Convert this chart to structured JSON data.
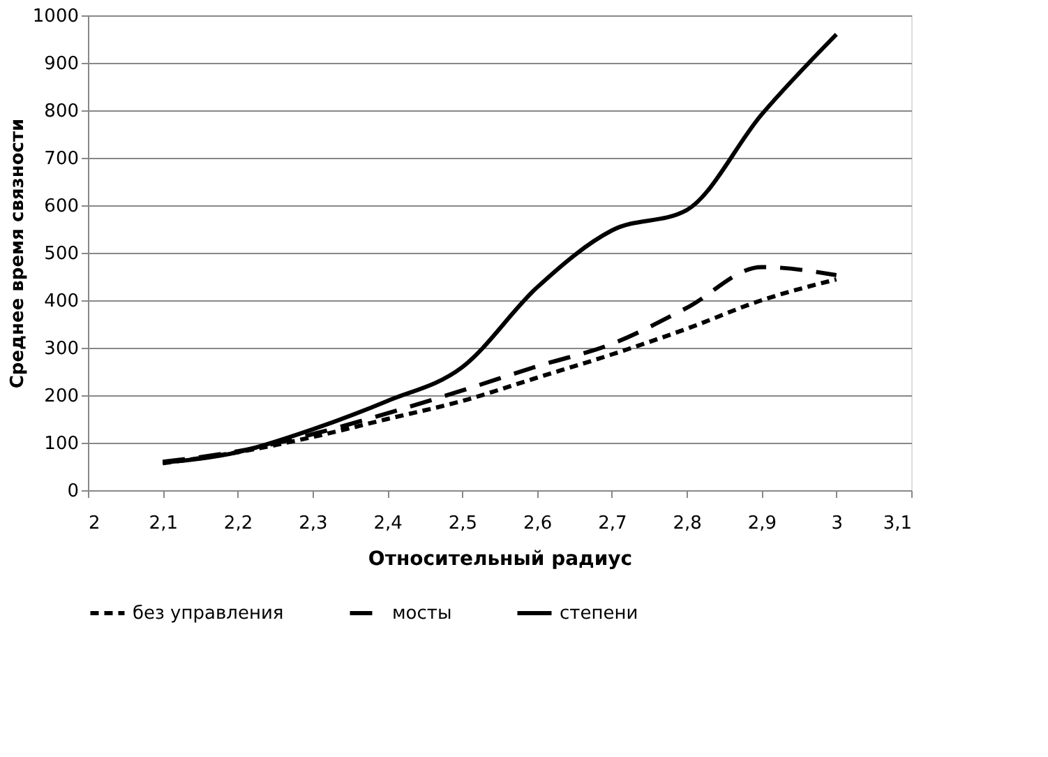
{
  "chart_data": {
    "type": "line",
    "xlabel": "Относительный  радиус",
    "ylabel": "Среднее время связности",
    "x": [
      2.1,
      2.2,
      2.3,
      2.4,
      2.5,
      2.6,
      2.7,
      2.8,
      2.9,
      3.0
    ],
    "series": [
      {
        "name": "без управления",
        "color": "#000000",
        "line_style": "dotted",
        "values": [
          57,
          80,
          112,
          150,
          188,
          237,
          286,
          340,
          400,
          444
        ]
      },
      {
        "name": "мосты",
        "color": "#000000",
        "line_style": "dashed",
        "values": [
          60,
          82,
          118,
          162,
          210,
          261,
          308,
          384,
          470,
          453
        ]
      },
      {
        "name": "степени",
        "color": "#000000",
        "line_style": "solid",
        "values": [
          58,
          80,
          128,
          188,
          259,
          427,
          547,
          590,
          791,
          960
        ]
      }
    ],
    "xlim": [
      2,
      3.1
    ],
    "xticks": [
      2,
      {
        "value": 2.1,
        "label": "2,1"
      },
      {
        "value": 2.2,
        "label": "2,2"
      },
      {
        "value": 2.3,
        "label": "2,3"
      },
      {
        "value": 2.4,
        "label": "2,4"
      },
      {
        "value": 2.5,
        "label": "2,5"
      },
      {
        "value": 2.6,
        "label": "2,6"
      },
      {
        "value": 2.7,
        "label": "2,7"
      },
      {
        "value": 2.8,
        "label": "2,8"
      },
      {
        "value": 2.9,
        "label": "2,9"
      },
      3,
      {
        "value": 3.1,
        "label": "3,1"
      }
    ],
    "ylim": [
      0,
      1000
    ],
    "yticks": [
      0,
      100,
      200,
      300,
      400,
      500,
      600,
      700,
      800,
      900,
      1000
    ],
    "grid": "y",
    "legend": "bottom",
    "marker": "none"
  }
}
